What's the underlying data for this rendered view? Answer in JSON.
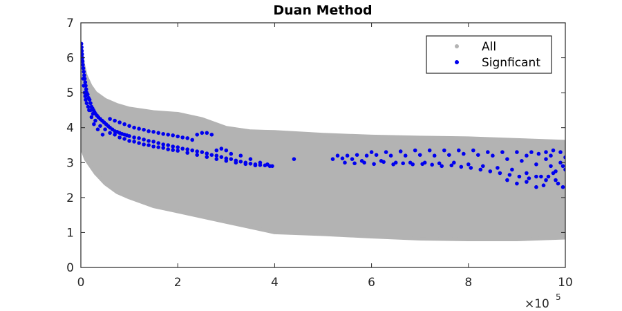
{
  "chart_data": {
    "type": "scatter",
    "title": "Duan Method",
    "xlabel": "",
    "ylabel": "",
    "xlim": [
      0,
      1000000
    ],
    "ylim": [
      0,
      7
    ],
    "x_multiplier_label": "×10",
    "x_multiplier_exponent": "5",
    "xticks": [
      {
        "value": 0,
        "label": "0"
      },
      {
        "value": 200000,
        "label": "2"
      },
      {
        "value": 400000,
        "label": "4"
      },
      {
        "value": 600000,
        "label": "6"
      },
      {
        "value": 800000,
        "label": "8"
      },
      {
        "value": 1000000,
        "label": "10"
      }
    ],
    "yticks": [
      {
        "value": 0,
        "label": "0"
      },
      {
        "value": 1,
        "label": "1"
      },
      {
        "value": 2,
        "label": "2"
      },
      {
        "value": 3,
        "label": "3"
      },
      {
        "value": 4,
        "label": "4"
      },
      {
        "value": 5,
        "label": "5"
      },
      {
        "value": 6,
        "label": "6"
      },
      {
        "value": 7,
        "label": "7"
      }
    ],
    "grid": false,
    "legend_position": "top-right",
    "series": [
      {
        "name": "All",
        "color": "#b3b3b3",
        "marker": "dot",
        "band": {
          "x": [
            0,
            5000,
            10000,
            20000,
            30000,
            50000,
            75000,
            100000,
            150000,
            200000,
            250000,
            300000,
            350000,
            400000,
            500000,
            600000,
            700000,
            800000,
            900000,
            1000000
          ],
          "upper": [
            6.3,
            5.8,
            5.5,
            5.2,
            5.0,
            4.8,
            4.65,
            4.55,
            4.45,
            4.4,
            4.25,
            4.0,
            3.9,
            3.88,
            3.8,
            3.75,
            3.72,
            3.7,
            3.65,
            3.6
          ],
          "lower": [
            3.4,
            3.3,
            3.1,
            2.9,
            2.7,
            2.4,
            2.15,
            2.0,
            1.75,
            1.6,
            1.45,
            1.3,
            1.15,
            1.0,
            0.95,
            0.88,
            0.82,
            0.8,
            0.8,
            0.85
          ]
        }
      },
      {
        "name": "Signficant",
        "color": "#0000ee",
        "marker": "dot",
        "points": [
          [
            1000,
            6.4
          ],
          [
            1500,
            6.3
          ],
          [
            2000,
            6.2
          ],
          [
            2500,
            6.1
          ],
          [
            3000,
            6.0
          ],
          [
            3500,
            5.9
          ],
          [
            4000,
            5.8
          ],
          [
            5000,
            5.7
          ],
          [
            6000,
            5.6
          ],
          [
            7000,
            5.5
          ],
          [
            8000,
            5.4
          ],
          [
            9000,
            5.3
          ],
          [
            10000,
            5.2
          ],
          [
            11000,
            5.1
          ],
          [
            12000,
            5.0
          ],
          [
            14000,
            4.95
          ],
          [
            16000,
            4.85
          ],
          [
            18000,
            4.8
          ],
          [
            20000,
            4.7
          ],
          [
            22000,
            4.6
          ],
          [
            24000,
            4.55
          ],
          [
            26000,
            4.5
          ],
          [
            28000,
            4.45
          ],
          [
            30000,
            4.4
          ],
          [
            33000,
            4.35
          ],
          [
            36000,
            4.3
          ],
          [
            40000,
            4.25
          ],
          [
            44000,
            4.2
          ],
          [
            48000,
            4.15
          ],
          [
            52000,
            4.1
          ],
          [
            56000,
            4.05
          ],
          [
            60000,
            4.0
          ],
          [
            65000,
            3.95
          ],
          [
            70000,
            3.9
          ],
          [
            75000,
            3.88
          ],
          [
            80000,
            3.85
          ],
          [
            85000,
            3.82
          ],
          [
            90000,
            3.8
          ],
          [
            95000,
            3.78
          ],
          [
            100000,
            3.76
          ],
          [
            110000,
            3.72
          ],
          [
            120000,
            3.7
          ],
          [
            130000,
            3.66
          ],
          [
            140000,
            3.62
          ],
          [
            150000,
            3.6
          ],
          [
            160000,
            3.56
          ],
          [
            170000,
            3.52
          ],
          [
            180000,
            3.5
          ],
          [
            190000,
            3.46
          ],
          [
            200000,
            3.44
          ],
          [
            210000,
            3.4
          ],
          [
            220000,
            3.38
          ],
          [
            230000,
            3.35
          ],
          [
            240000,
            3.32
          ],
          [
            250000,
            3.3
          ],
          [
            260000,
            3.26
          ],
          [
            270000,
            3.22
          ],
          [
            280000,
            3.2
          ],
          [
            290000,
            3.16
          ],
          [
            300000,
            3.12
          ],
          [
            310000,
            3.1
          ],
          [
            320000,
            3.06
          ],
          [
            330000,
            3.03
          ],
          [
            340000,
            3.0
          ],
          [
            350000,
            2.97
          ],
          [
            360000,
            2.95
          ],
          [
            370000,
            2.93
          ],
          [
            380000,
            2.92
          ],
          [
            390000,
            2.9
          ],
          [
            395000,
            2.9
          ],
          [
            10000,
            4.8
          ],
          [
            15000,
            4.6
          ],
          [
            20000,
            4.5
          ],
          [
            25000,
            4.4
          ],
          [
            30000,
            4.2
          ],
          [
            40000,
            4.05
          ],
          [
            50000,
            3.95
          ],
          [
            60000,
            3.85
          ],
          [
            70000,
            3.8
          ],
          [
            80000,
            3.72
          ],
          [
            90000,
            3.68
          ],
          [
            100000,
            3.62
          ],
          [
            110000,
            3.6
          ],
          [
            120000,
            3.56
          ],
          [
            130000,
            3.52
          ],
          [
            140000,
            3.5
          ],
          [
            150000,
            3.46
          ],
          [
            160000,
            3.44
          ],
          [
            170000,
            3.42
          ],
          [
            180000,
            3.38
          ],
          [
            190000,
            3.36
          ],
          [
            200000,
            3.34
          ],
          [
            220000,
            3.28
          ],
          [
            240000,
            3.22
          ],
          [
            260000,
            3.16
          ],
          [
            280000,
            3.1
          ],
          [
            300000,
            3.05
          ],
          [
            320000,
            3.0
          ],
          [
            340000,
            2.96
          ],
          [
            360000,
            2.92
          ],
          [
            60000,
            4.25
          ],
          [
            70000,
            4.2
          ],
          [
            80000,
            4.15
          ],
          [
            90000,
            4.1
          ],
          [
            100000,
            4.05
          ],
          [
            110000,
            4.0
          ],
          [
            120000,
            3.97
          ],
          [
            130000,
            3.94
          ],
          [
            140000,
            3.9
          ],
          [
            150000,
            3.88
          ],
          [
            160000,
            3.85
          ],
          [
            170000,
            3.82
          ],
          [
            180000,
            3.8
          ],
          [
            190000,
            3.78
          ],
          [
            200000,
            3.75
          ],
          [
            210000,
            3.72
          ],
          [
            220000,
            3.7
          ],
          [
            230000,
            3.65
          ],
          [
            240000,
            3.8
          ],
          [
            250000,
            3.85
          ],
          [
            260000,
            3.85
          ],
          [
            270000,
            3.8
          ],
          [
            280000,
            3.35
          ],
          [
            290000,
            3.4
          ],
          [
            300000,
            3.35
          ],
          [
            310000,
            3.25
          ],
          [
            330000,
            3.2
          ],
          [
            350000,
            3.1
          ],
          [
            370000,
            3.0
          ],
          [
            385000,
            2.95
          ],
          [
            5000,
            5.4
          ],
          [
            6000,
            5.2
          ],
          [
            8000,
            5.0
          ],
          [
            9000,
            4.9
          ],
          [
            12000,
            4.7
          ],
          [
            17000,
            4.5
          ],
          [
            22000,
            4.3
          ],
          [
            27000,
            4.1
          ],
          [
            35000,
            3.95
          ],
          [
            45000,
            3.8
          ],
          [
            440000,
            3.1
          ],
          [
            520000,
            3.1
          ],
          [
            530000,
            3.2
          ],
          [
            540000,
            3.12
          ],
          [
            550000,
            3.2
          ],
          [
            560000,
            3.1
          ],
          [
            570000,
            3.22
          ],
          [
            580000,
            3.05
          ],
          [
            590000,
            3.2
          ],
          [
            600000,
            3.3
          ],
          [
            610000,
            3.22
          ],
          [
            620000,
            3.05
          ],
          [
            630000,
            3.3
          ],
          [
            640000,
            3.2
          ],
          [
            650000,
            3.0
          ],
          [
            660000,
            3.32
          ],
          [
            670000,
            3.2
          ],
          [
            680000,
            3.0
          ],
          [
            690000,
            3.35
          ],
          [
            700000,
            3.22
          ],
          [
            710000,
            3.0
          ],
          [
            720000,
            3.35
          ],
          [
            730000,
            3.2
          ],
          [
            740000,
            2.98
          ],
          [
            750000,
            3.35
          ],
          [
            760000,
            3.22
          ],
          [
            770000,
            3.0
          ],
          [
            780000,
            3.35
          ],
          [
            790000,
            3.25
          ],
          [
            800000,
            2.95
          ],
          [
            810000,
            3.35
          ],
          [
            820000,
            3.22
          ],
          [
            830000,
            2.9
          ],
          [
            840000,
            3.3
          ],
          [
            850000,
            3.2
          ],
          [
            860000,
            2.85
          ],
          [
            870000,
            3.3
          ],
          [
            880000,
            3.1
          ],
          [
            890000,
            2.8
          ],
          [
            900000,
            3.3
          ],
          [
            910000,
            3.05
          ],
          [
            920000,
            2.7
          ],
          [
            930000,
            3.3
          ],
          [
            940000,
            2.95
          ],
          [
            950000,
            2.6
          ],
          [
            960000,
            3.3
          ],
          [
            970000,
            2.9
          ],
          [
            980000,
            2.5
          ],
          [
            990000,
            3.3
          ],
          [
            1000000,
            2.8
          ],
          [
            545000,
            3.0
          ],
          [
            565000,
            2.98
          ],
          [
            585000,
            3.0
          ],
          [
            605000,
            2.96
          ],
          [
            625000,
            3.02
          ],
          [
            645000,
            2.95
          ],
          [
            665000,
            2.98
          ],
          [
            685000,
            2.95
          ],
          [
            705000,
            2.96
          ],
          [
            725000,
            2.94
          ],
          [
            745000,
            2.9
          ],
          [
            765000,
            2.92
          ],
          [
            785000,
            2.88
          ],
          [
            805000,
            2.85
          ],
          [
            825000,
            2.8
          ],
          [
            845000,
            2.75
          ],
          [
            865000,
            2.7
          ],
          [
            885000,
            2.65
          ],
          [
            905000,
            2.6
          ],
          [
            925000,
            2.55
          ],
          [
            940000,
            2.3
          ],
          [
            955000,
            2.35
          ],
          [
            965000,
            2.6
          ],
          [
            975000,
            2.7
          ],
          [
            985000,
            2.4
          ],
          [
            995000,
            2.3
          ],
          [
            960000,
            3.1
          ],
          [
            970000,
            3.2
          ],
          [
            990000,
            3.0
          ],
          [
            1000000,
            3.15
          ],
          [
            880000,
            2.5
          ],
          [
            900000,
            2.4
          ],
          [
            920000,
            2.45
          ],
          [
            940000,
            2.6
          ],
          [
            960000,
            2.5
          ],
          [
            980000,
            2.75
          ],
          [
            995000,
            2.9
          ],
          [
            920000,
            3.2
          ],
          [
            945000,
            3.25
          ],
          [
            975000,
            3.35
          ]
        ]
      }
    ]
  }
}
